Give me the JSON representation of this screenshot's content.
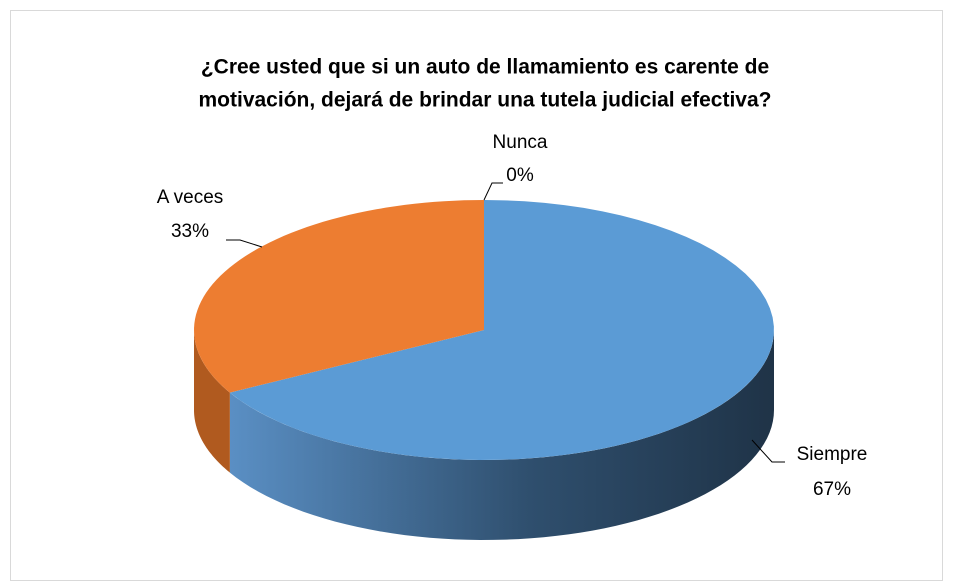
{
  "chart_data": {
    "type": "pie3d",
    "title": [
      "¿Cree usted que si un auto de llamamiento es carente de",
      "motivación, dejará de brindar una tutela judicial efectiva?"
    ],
    "categories": [
      "Siempre",
      "A veces",
      "Nunca"
    ],
    "values": [
      67,
      33,
      0
    ],
    "value_labels": [
      "67%",
      "33%",
      "0%"
    ],
    "colors": [
      "#5B9BD5",
      "#ED7D31",
      "#A5A5A5"
    ]
  }
}
